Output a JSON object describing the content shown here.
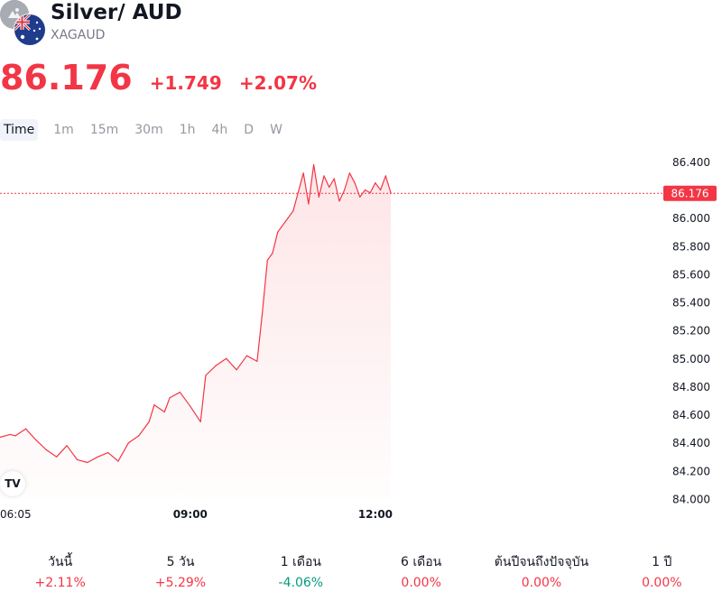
{
  "header": {
    "title": "Silver/ AUD",
    "ticker": "XAGAUD",
    "price": "86.176",
    "change": "+1.749",
    "change_pct": "+2.07%",
    "coin_icon": "silver-coin-icon",
    "flag_icon": "australia-flag-icon"
  },
  "intervals": [
    "Time",
    "1m",
    "15m",
    "30m",
    "1h",
    "4h",
    "D",
    "W"
  ],
  "active_interval": "Time",
  "colors": {
    "down": "#f23645",
    "up": "#089981",
    "neutral": "#131722",
    "muted": "#787b86",
    "axis_text": "#131722"
  },
  "chart_data": {
    "type": "area",
    "title": "",
    "xlabel": "",
    "ylabel": "",
    "xlim": [
      "05:55",
      "16:40"
    ],
    "ylim": [
      84.0,
      86.46
    ],
    "yticks": [
      "86.400",
      "86.000",
      "85.800",
      "85.600",
      "85.400",
      "85.200",
      "85.000",
      "84.800",
      "84.600",
      "84.400",
      "84.200",
      "84.000"
    ],
    "xticks": [
      {
        "label": "06:05",
        "time": "06:05",
        "bold": false
      },
      {
        "label": "09:00",
        "time": "09:00",
        "bold": true
      },
      {
        "label": "12:00",
        "time": "12:00",
        "bold": true
      }
    ],
    "last_price_label": "86.176",
    "last_price": 86.176,
    "series": [
      {
        "x": [
          "05:55",
          "06:05",
          "06:10",
          "06:20",
          "06:30",
          "06:40",
          "06:50",
          "07:00",
          "07:10",
          "07:20",
          "07:30",
          "07:40",
          "07:50",
          "08:00",
          "08:10",
          "08:20",
          "08:25",
          "08:35",
          "08:40",
          "08:50",
          "09:00",
          "09:10",
          "09:15",
          "09:25",
          "09:35",
          "09:45",
          "09:55",
          "10:05",
          "10:10",
          "10:15",
          "10:20",
          "10:25",
          "10:35",
          "10:40",
          "10:50",
          "10:55",
          "11:00",
          "11:05",
          "11:10",
          "11:15",
          "11:20",
          "11:25",
          "11:30",
          "11:35",
          "11:40",
          "11:45",
          "11:50",
          "11:55",
          "12:00",
          "12:05",
          "12:10",
          "12:15"
        ],
        "values": [
          84.44,
          84.46,
          84.45,
          84.5,
          84.42,
          84.35,
          84.3,
          84.38,
          84.28,
          84.26,
          84.3,
          84.33,
          84.27,
          84.4,
          84.45,
          84.55,
          84.67,
          84.62,
          84.72,
          84.76,
          84.66,
          84.55,
          84.88,
          84.95,
          85.0,
          84.92,
          85.02,
          84.98,
          85.32,
          85.7,
          85.75,
          85.9,
          86.0,
          86.05,
          86.32,
          86.1,
          86.38,
          86.15,
          86.3,
          86.22,
          86.28,
          86.12,
          86.2,
          86.32,
          86.25,
          86.15,
          86.2,
          86.18,
          86.25,
          86.2,
          86.3,
          86.18
        ]
      }
    ],
    "grid": false,
    "legend": "none"
  },
  "tv_logo": "TV",
  "performance": [
    {
      "label": "วันนี้",
      "value": "+2.11%",
      "sign": "up"
    },
    {
      "label": "5 วัน",
      "value": "+5.29%",
      "sign": "up"
    },
    {
      "label": "1 เดือน",
      "value": "-4.06%",
      "sign": "down"
    },
    {
      "label": "6 เดือน",
      "value": "0.00%",
      "sign": "up"
    },
    {
      "label": "ต้นปีจนถึงปัจจุบัน",
      "value": "0.00%",
      "sign": "up"
    },
    {
      "label": "1 ปี",
      "value": "0.00%",
      "sign": "up"
    }
  ]
}
